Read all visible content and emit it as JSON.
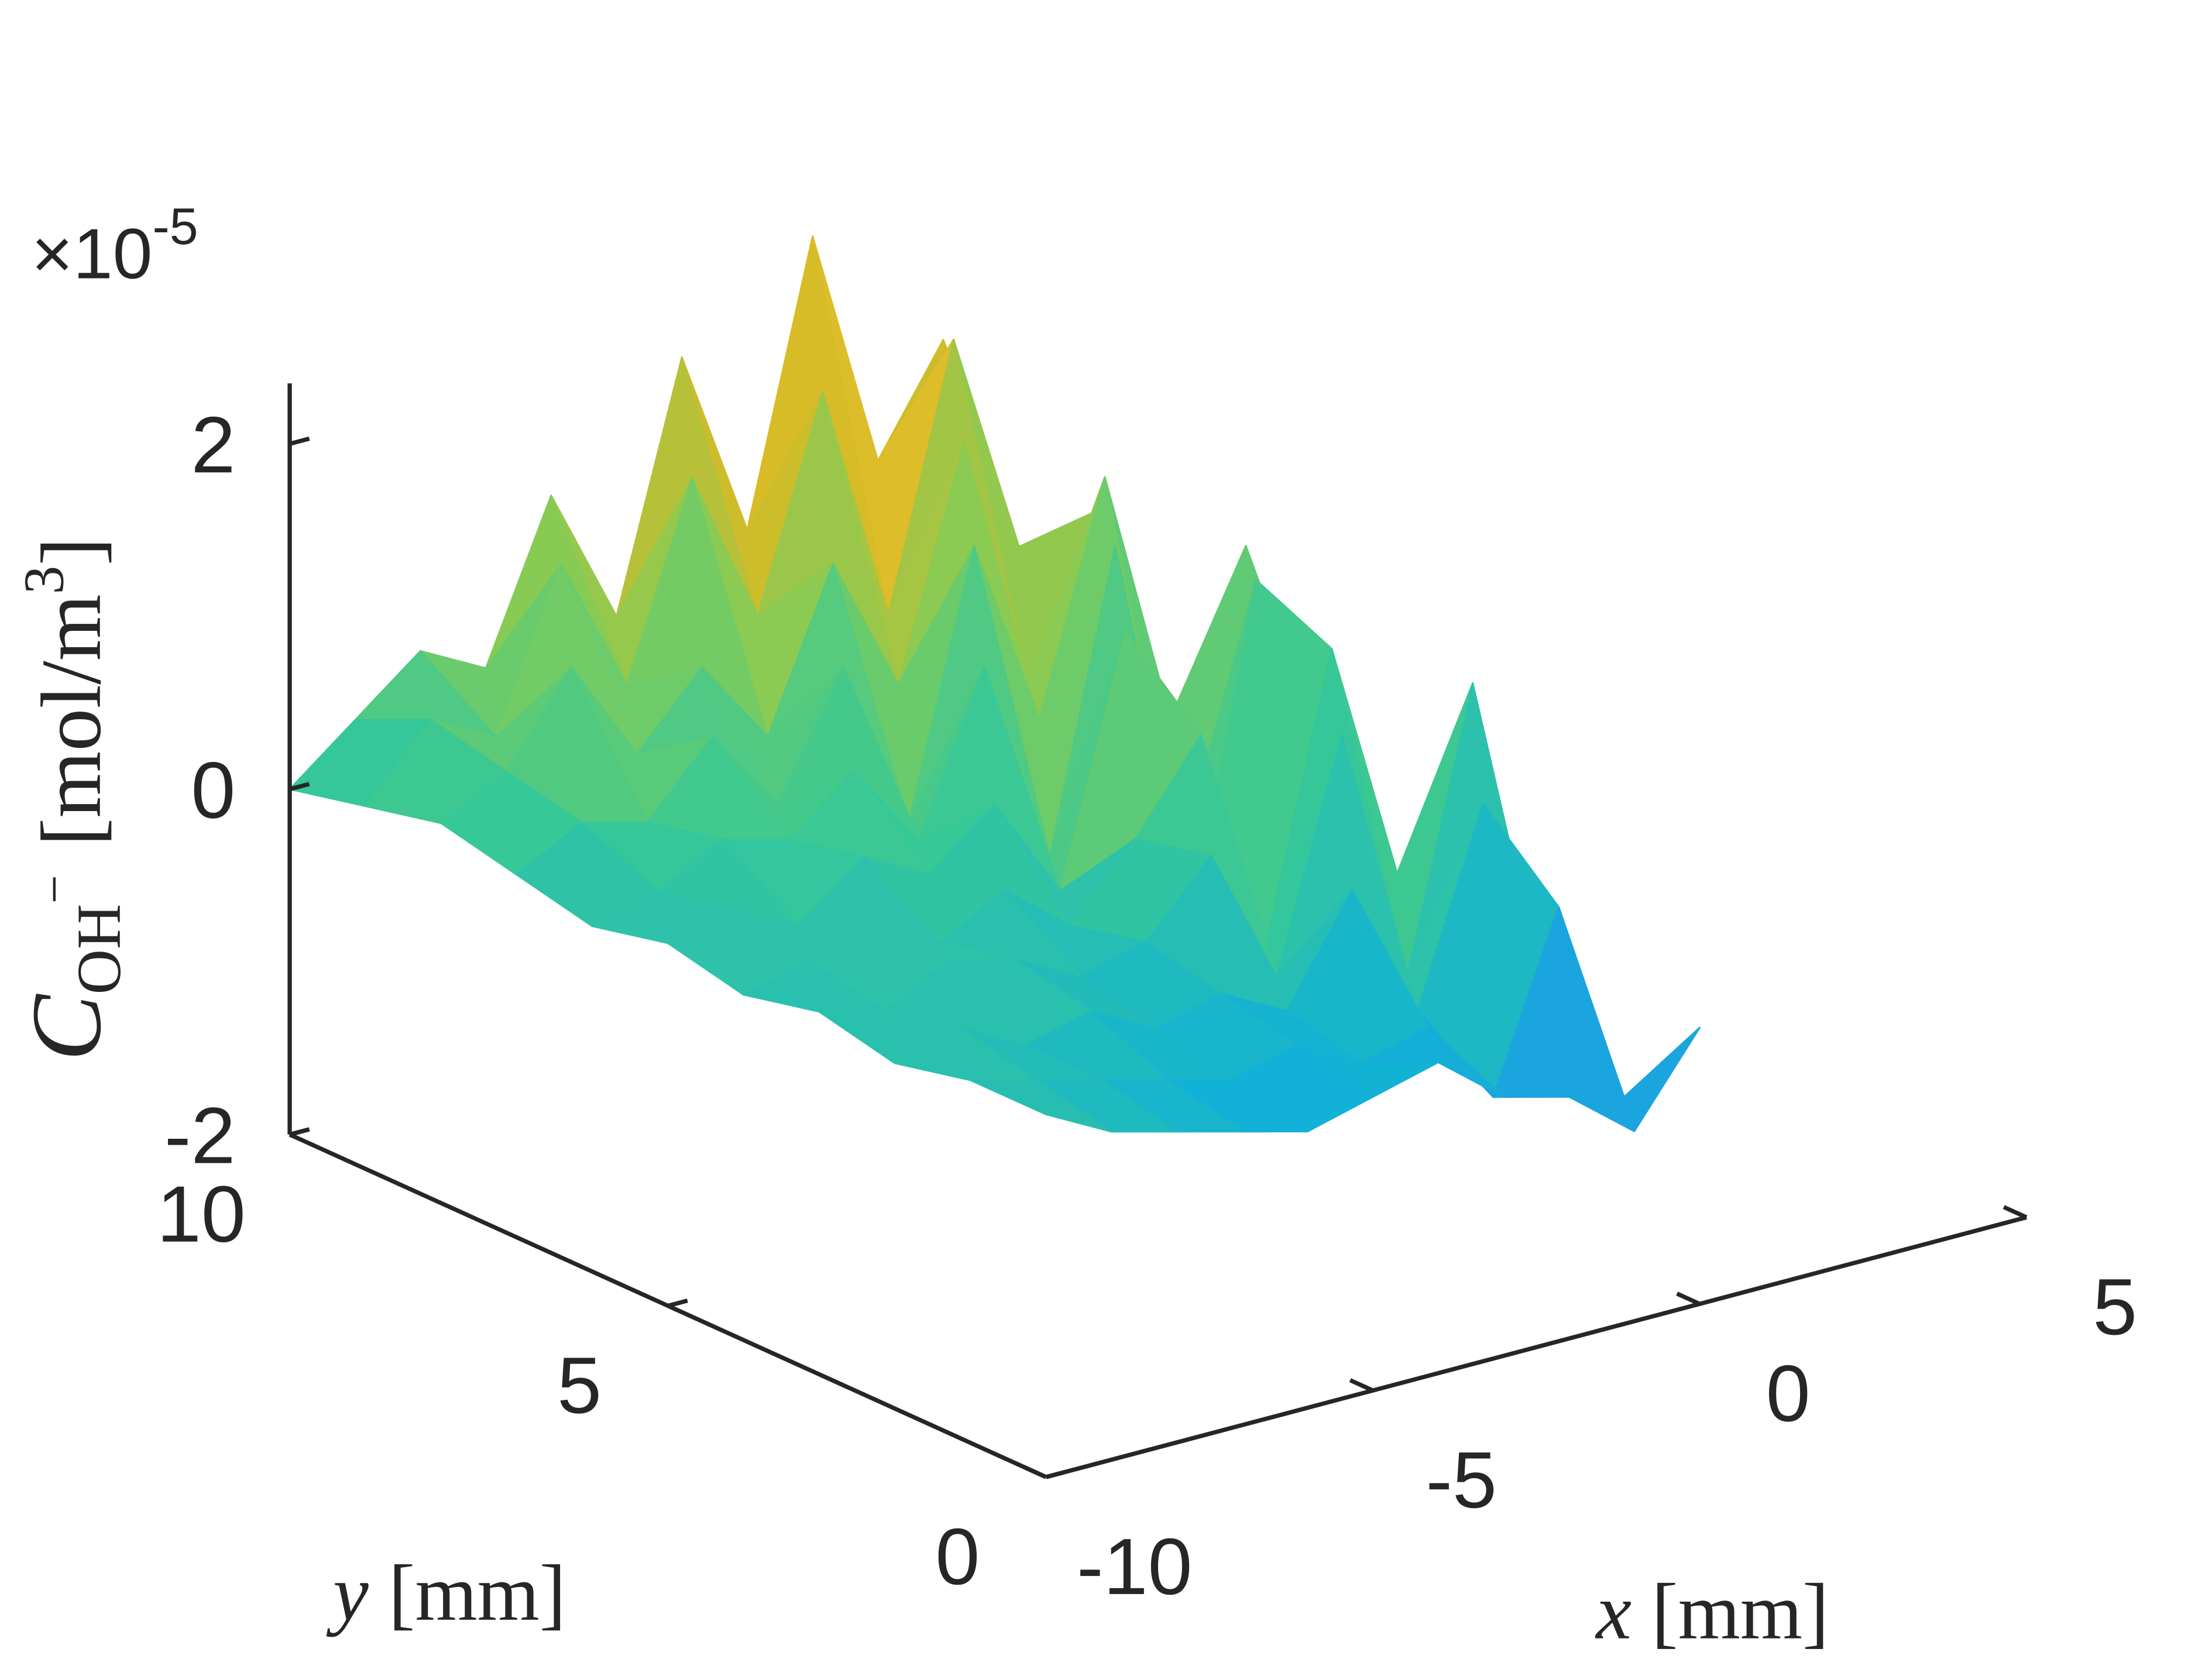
{
  "chart_data": {
    "type": "surface3d",
    "z_multiplier": "×10",
    "z_exponent": "-5",
    "xlabel": {
      "symbol": "x",
      "unit": "[mm]"
    },
    "ylabel": {
      "symbol": "y",
      "unit": "[mm]"
    },
    "zlabel": {
      "symbol": "C",
      "subscript": "OH",
      "superscript": "−",
      "unit": "[mol/m",
      "unit_power": "3",
      "unit_close": "]"
    },
    "x": [
      -10,
      -9,
      -8,
      -7,
      -6,
      -5,
      -4,
      -3,
      -2,
      -1,
      0
    ],
    "y": [
      0,
      1,
      2,
      3,
      4,
      5,
      6,
      7,
      8,
      9,
      10
    ],
    "z": [
      [
        0.1,
        -0.1,
        -0.2,
        -0.3,
        -0.4,
        -0.3,
        -0.2,
        -0.5,
        -0.6,
        -0.9,
        -0.4
      ],
      [
        0.1,
        0.0,
        -0.1,
        -0.2,
        -0.3,
        -0.2,
        -0.4,
        -0.3,
        -0.8,
        0.2,
        -1.0
      ],
      [
        0.0,
        0.1,
        -0.1,
        0.0,
        -0.2,
        -0.1,
        -0.3,
        0.3,
        -0.5,
        0.6,
        -0.7
      ],
      [
        0.1,
        0.0,
        0.2,
        0.1,
        -0.1,
        0.0,
        0.4,
        -0.4,
        0.9,
        -0.6,
        1.0
      ],
      [
        0.0,
        0.1,
        0.1,
        0.0,
        0.2,
        -0.1,
        0.3,
        0.8,
        -0.5,
        1.1,
        -0.3
      ],
      [
        0.1,
        0.2,
        0.0,
        0.3,
        0.1,
        0.4,
        -0.2,
        1.2,
        -0.6,
        1.3,
        0.2
      ],
      [
        0.0,
        0.1,
        0.3,
        0.2,
        0.5,
        0.0,
        0.9,
        -0.3,
        1.4,
        -0.5,
        1.2
      ],
      [
        0.1,
        0.3,
        0.2,
        0.6,
        0.1,
        0.8,
        -0.2,
        1.3,
        0.2,
        1.5,
        0.0
      ],
      [
        0.2,
        0.4,
        0.9,
        0.3,
        0.7,
        0.2,
        1.1,
        0.3,
        1.6,
        0.1,
        1.0
      ],
      [
        0.1,
        0.5,
        0.3,
        1.2,
        0.4,
        1.5,
        0.6,
        1.8,
        0.4,
        1.9,
        0.6
      ],
      [
        0.0,
        0.3,
        0.6,
        0.4,
        1.3,
        0.5,
        1.9,
        0.8,
        2.4,
        1.0,
        1.6
      ]
    ],
    "xlim": [
      -10,
      5
    ],
    "ylim": [
      0,
      10
    ],
    "zlim": [
      -2,
      2.35
    ],
    "xticks": [
      -10,
      -5,
      0,
      5
    ],
    "yticks": [
      0,
      5,
      10
    ],
    "zticks": [
      -2,
      0,
      2
    ],
    "clim": [
      -1.9,
      2.4
    ],
    "colormap": "parula"
  }
}
